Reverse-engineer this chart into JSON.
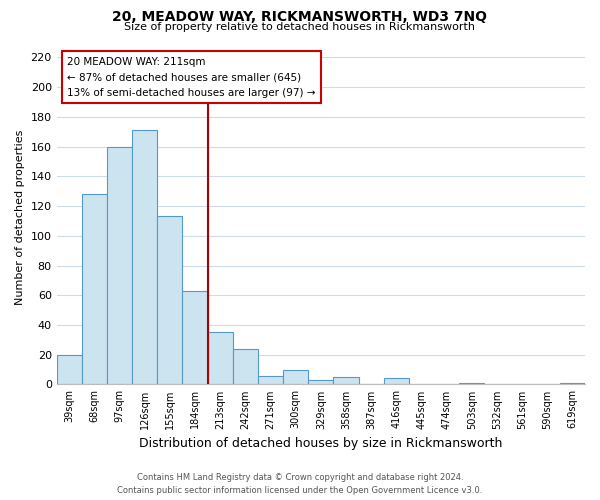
{
  "title": "20, MEADOW WAY, RICKMANSWORTH, WD3 7NQ",
  "subtitle": "Size of property relative to detached houses in Rickmansworth",
  "xlabel": "Distribution of detached houses by size in Rickmansworth",
  "ylabel": "Number of detached properties",
  "bar_labels": [
    "39sqm",
    "68sqm",
    "97sqm",
    "126sqm",
    "155sqm",
    "184sqm",
    "213sqm",
    "242sqm",
    "271sqm",
    "300sqm",
    "329sqm",
    "358sqm",
    "387sqm",
    "416sqm",
    "445sqm",
    "474sqm",
    "503sqm",
    "532sqm",
    "561sqm",
    "590sqm",
    "619sqm"
  ],
  "bar_heights": [
    20,
    128,
    160,
    171,
    113,
    63,
    35,
    24,
    6,
    10,
    3,
    5,
    0,
    4,
    0,
    0,
    1,
    0,
    0,
    0,
    1
  ],
  "bar_color": "#cce4f0",
  "bar_edge_color": "#5599cc",
  "vline_color": "#aa0000",
  "annotation_title": "20 MEADOW WAY: 211sqm",
  "annotation_line1": "← 87% of detached houses are smaller (645)",
  "annotation_line2": "13% of semi-detached houses are larger (97) →",
  "annotation_box_color": "#ffffff",
  "annotation_box_edge": "#cc0000",
  "ylim": [
    0,
    225
  ],
  "yticks": [
    0,
    20,
    40,
    60,
    80,
    100,
    120,
    140,
    160,
    180,
    200,
    220
  ],
  "footer1": "Contains HM Land Registry data © Crown copyright and database right 2024.",
  "footer2": "Contains public sector information licensed under the Open Government Licence v3.0.",
  "background_color": "#ffffff",
  "grid_color": "#ccdde8"
}
